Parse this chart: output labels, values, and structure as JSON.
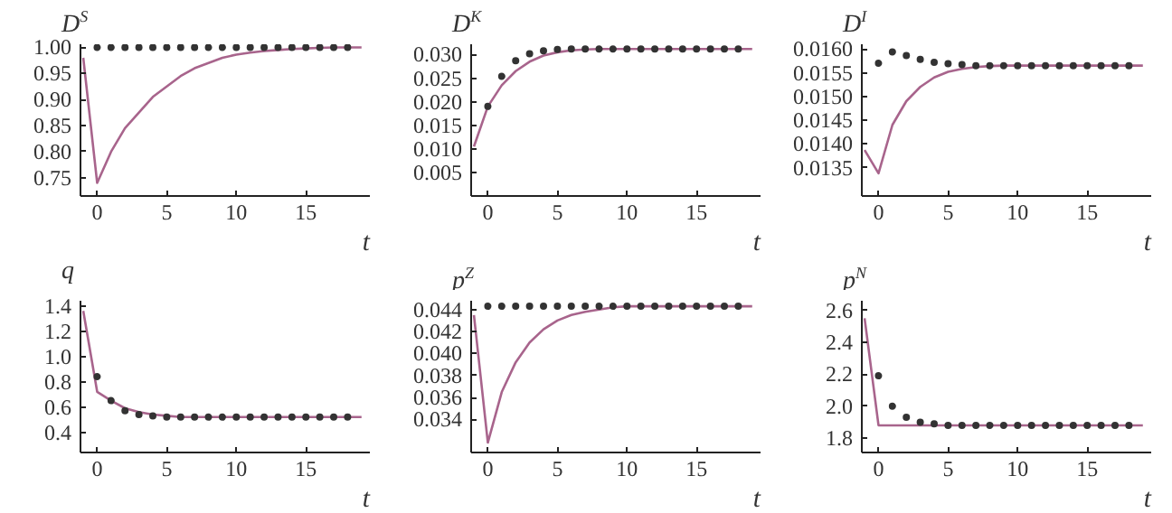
{
  "chart_data": [
    {
      "type": "line",
      "ylabel": "D$^{S}$",
      "xlabel": "t",
      "xlim": [
        -1.2,
        19.6
      ],
      "ylim": [
        0.715,
        1.006
      ],
      "xticks": [
        0,
        5,
        10,
        15
      ],
      "yticks": [
        {
          "value": 1.0,
          "label": "1.00"
        },
        0.95,
        {
          "value": 0.9,
          "label": "0.90"
        },
        0.85,
        {
          "value": 0.8,
          "label": "0.80"
        },
        0.75
      ],
      "series": [
        {
          "type": "line",
          "color": "#a8648c",
          "x": [
            -1,
            0,
            1,
            2,
            3,
            4,
            5,
            6,
            7,
            8,
            9,
            10,
            11,
            12,
            13,
            14,
            15,
            16,
            17,
            18,
            19
          ],
          "values": [
            0.98,
            0.74,
            0.8,
            0.845,
            0.875,
            0.905,
            0.925,
            0.945,
            0.96,
            0.97,
            0.98,
            0.986,
            0.99,
            0.993,
            0.995,
            0.997,
            0.998,
            0.999,
            1.0,
            1.0,
            1.0
          ]
        },
        {
          "type": "scatter",
          "marker": "circle",
          "color": "#333333",
          "x": [
            0,
            1,
            2,
            3,
            4,
            5,
            6,
            7,
            8,
            9,
            10,
            11,
            12,
            13,
            14,
            15,
            16,
            17,
            18
          ],
          "values": [
            1.0,
            1.0,
            1.0,
            1.0,
            1.0,
            1.0,
            1.0,
            1.0,
            1.0,
            1.0,
            1.0,
            1.0,
            1.0,
            1.0,
            1.0,
            1.0,
            1.0,
            1.0,
            1.0
          ]
        }
      ]
    },
    {
      "type": "line",
      "ylabel": "D$^{K}$",
      "xlabel": "t",
      "xlim": [
        -1.2,
        19.6
      ],
      "ylim": [
        0,
        0.0322
      ],
      "xticks": [
        0,
        5,
        10,
        15
      ],
      "yticks": [
        {
          "value": 0.03,
          "label": "0.030"
        },
        0.025,
        {
          "value": 0.02,
          "label": "0.020"
        },
        0.015,
        {
          "value": 0.01,
          "label": "0.010"
        },
        0.005
      ],
      "series": [
        {
          "type": "line",
          "color": "#a8648c",
          "x": [
            -1,
            0,
            1,
            2,
            3,
            4,
            5,
            6,
            7,
            8,
            9,
            10,
            11,
            12,
            13,
            14,
            15,
            16,
            17,
            18,
            19
          ],
          "values": [
            0.0105,
            0.019,
            0.0235,
            0.0265,
            0.0285,
            0.0298,
            0.0305,
            0.0309,
            0.0311,
            0.0312,
            0.0312,
            0.0312,
            0.0312,
            0.0312,
            0.0312,
            0.0312,
            0.0312,
            0.0312,
            0.0312,
            0.0312,
            0.0312
          ]
        },
        {
          "type": "scatter",
          "marker": "circle",
          "color": "#333333",
          "x": [
            0,
            1,
            2,
            3,
            4,
            5,
            6,
            7,
            8,
            9,
            10,
            11,
            12,
            13,
            14,
            15,
            16,
            17,
            18
          ],
          "values": [
            0.019,
            0.0254,
            0.0287,
            0.0302,
            0.0308,
            0.0311,
            0.0312,
            0.0312,
            0.0312,
            0.0312,
            0.0312,
            0.0312,
            0.0312,
            0.0312,
            0.0312,
            0.0312,
            0.0312,
            0.0312,
            0.0312
          ]
        }
      ]
    },
    {
      "type": "line",
      "ylabel": "D$^{I}$",
      "xlabel": "t",
      "xlim": [
        -1.2,
        19.6
      ],
      "ylim": [
        0.0129,
        0.0161
      ],
      "xticks": [
        0,
        5,
        10,
        15
      ],
      "yticks": [
        {
          "value": 0.016,
          "label": "0.0160"
        },
        0.0155,
        {
          "value": 0.015,
          "label": "0.0150"
        },
        0.0145,
        {
          "value": 0.014,
          "label": "0.0140"
        },
        0.0135
      ],
      "series": [
        {
          "type": "line",
          "color": "#a8648c",
          "x": [
            -1,
            0,
            1,
            2,
            3,
            4,
            5,
            6,
            7,
            8,
            9,
            10,
            11,
            12,
            13,
            14,
            15,
            16,
            17,
            18,
            19
          ],
          "values": [
            0.01387,
            0.01338,
            0.0144,
            0.0149,
            0.0152,
            0.0154,
            0.01552,
            0.01558,
            0.01562,
            0.01564,
            0.01565,
            0.01565,
            0.01565,
            0.01565,
            0.01565,
            0.01565,
            0.01565,
            0.01565,
            0.01565,
            0.01565,
            0.01565
          ]
        },
        {
          "type": "scatter",
          "marker": "circle",
          "color": "#333333",
          "x": [
            0,
            1,
            2,
            3,
            4,
            5,
            6,
            7,
            8,
            9,
            10,
            11,
            12,
            13,
            14,
            15,
            16,
            17,
            18
          ],
          "values": [
            0.0157,
            0.01594,
            0.01586,
            0.01578,
            0.01572,
            0.01569,
            0.01567,
            0.01565,
            0.01565,
            0.01565,
            0.01565,
            0.01565,
            0.01565,
            0.01565,
            0.01565,
            0.01565,
            0.01565,
            0.01565,
            0.01565
          ]
        }
      ]
    },
    {
      "type": "line",
      "ylabel": "q",
      "xlabel": "t",
      "xlim": [
        -1.2,
        19.6
      ],
      "ylim": [
        0.24,
        1.44
      ],
      "xticks": [
        0,
        5,
        10,
        15
      ],
      "yticks": [
        1.4,
        1.2,
        {
          "value": 1.0,
          "label": "1.0"
        },
        0.8,
        0.6,
        0.4
      ],
      "series": [
        {
          "type": "line",
          "color": "#a8648c",
          "x": [
            -1,
            0,
            1,
            2,
            3,
            4,
            5,
            6,
            7,
            8,
            9,
            10,
            11,
            12,
            13,
            14,
            15,
            16,
            17,
            18,
            19
          ],
          "values": [
            1.36,
            0.72,
            0.65,
            0.59,
            0.56,
            0.54,
            0.53,
            0.52,
            0.52,
            0.52,
            0.52,
            0.52,
            0.52,
            0.52,
            0.52,
            0.52,
            0.52,
            0.52,
            0.52,
            0.52,
            0.52
          ]
        },
        {
          "type": "scatter",
          "marker": "circle",
          "color": "#333333",
          "x": [
            0,
            1,
            2,
            3,
            4,
            5,
            6,
            7,
            8,
            9,
            10,
            11,
            12,
            13,
            14,
            15,
            16,
            17,
            18
          ],
          "values": [
            0.84,
            0.65,
            0.57,
            0.54,
            0.53,
            0.52,
            0.52,
            0.52,
            0.52,
            0.52,
            0.52,
            0.52,
            0.52,
            0.52,
            0.52,
            0.52,
            0.52,
            0.52,
            0.52
          ]
        }
      ]
    },
    {
      "type": "line",
      "ylabel": "p$^{Z}$",
      "xlabel": "t",
      "xlim": [
        -1.2,
        19.6
      ],
      "ylim": [
        0.031,
        0.0448
      ],
      "xticks": [
        0,
        5,
        10,
        15
      ],
      "yticks": [
        {
          "value": 0.044,
          "label": "0.044"
        },
        {
          "value": 0.042,
          "label": "0.042"
        },
        {
          "value": 0.04,
          "label": "0.040"
        },
        {
          "value": 0.038,
          "label": "0.038"
        },
        {
          "value": 0.036,
          "label": "0.036"
        },
        {
          "value": 0.034,
          "label": "0.034"
        }
      ],
      "series": [
        {
          "type": "line",
          "color": "#a8648c",
          "x": [
            -1,
            0,
            1,
            2,
            3,
            4,
            5,
            6,
            7,
            8,
            9,
            10,
            11,
            12,
            13,
            14,
            15,
            16,
            17,
            18,
            19
          ],
          "values": [
            0.0435,
            0.0319,
            0.0365,
            0.0392,
            0.041,
            0.0422,
            0.043,
            0.0435,
            0.0438,
            0.044,
            0.0442,
            0.0443,
            0.0443,
            0.0443,
            0.0443,
            0.0443,
            0.0443,
            0.0443,
            0.0443,
            0.0443,
            0.0443
          ]
        },
        {
          "type": "scatter",
          "marker": "circle",
          "color": "#333333",
          "x": [
            0,
            1,
            2,
            3,
            4,
            5,
            6,
            7,
            8,
            9,
            10,
            11,
            12,
            13,
            14,
            15,
            16,
            17,
            18
          ],
          "values": [
            0.0443,
            0.0443,
            0.0443,
            0.0443,
            0.0443,
            0.0443,
            0.0443,
            0.0443,
            0.0443,
            0.0443,
            0.0443,
            0.0443,
            0.0443,
            0.0443,
            0.0443,
            0.0443,
            0.0443,
            0.0443,
            0.0443
          ]
        }
      ]
    },
    {
      "type": "line",
      "ylabel": "p$^{N}$",
      "xlabel": "t",
      "xlim": [
        -1.2,
        19.6
      ],
      "ylim": [
        1.71,
        2.66
      ],
      "xticks": [
        0,
        5,
        10,
        15
      ],
      "yticks": [
        2.6,
        2.4,
        2.2,
        {
          "value": 2.0,
          "label": "2.0"
        },
        1.8
      ],
      "series": [
        {
          "type": "line",
          "color": "#a8648c",
          "x": [
            -1,
            0,
            1,
            2,
            3,
            4,
            5,
            6,
            7,
            8,
            9,
            10,
            11,
            12,
            13,
            14,
            15,
            16,
            17,
            18,
            19
          ],
          "values": [
            2.55,
            1.88,
            1.88,
            1.88,
            1.88,
            1.88,
            1.88,
            1.88,
            1.88,
            1.88,
            1.88,
            1.88,
            1.88,
            1.88,
            1.88,
            1.88,
            1.88,
            1.88,
            1.88,
            1.88,
            1.88
          ]
        },
        {
          "type": "scatter",
          "marker": "circle",
          "color": "#333333",
          "x": [
            0,
            1,
            2,
            3,
            4,
            5,
            6,
            7,
            8,
            9,
            10,
            11,
            12,
            13,
            14,
            15,
            16,
            17,
            18
          ],
          "values": [
            2.19,
            2.0,
            1.93,
            1.9,
            1.89,
            1.88,
            1.88,
            1.88,
            1.88,
            1.88,
            1.88,
            1.88,
            1.88,
            1.88,
            1.88,
            1.88,
            1.88,
            1.88,
            1.88
          ]
        }
      ]
    }
  ]
}
